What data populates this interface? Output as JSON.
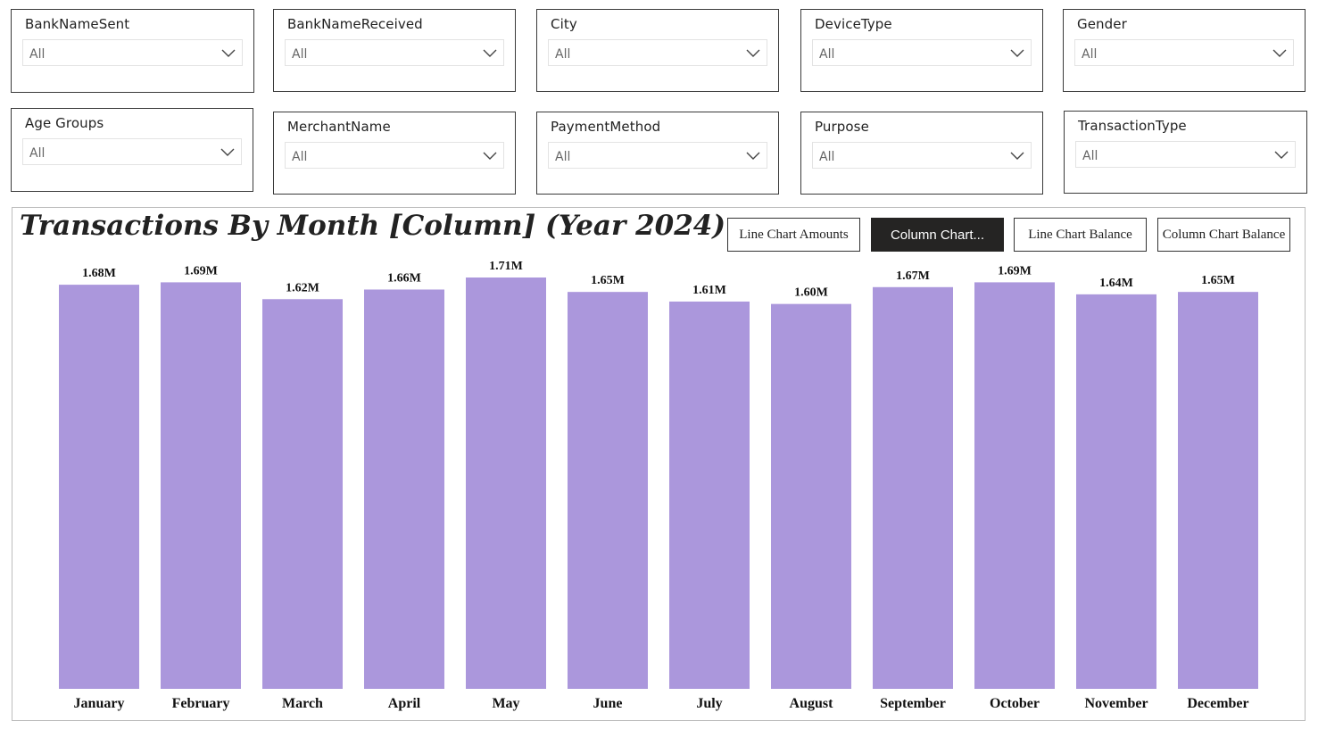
{
  "slicers": [
    {
      "title": "BankNameSent",
      "value": "All"
    },
    {
      "title": "BankNameReceived",
      "value": "All"
    },
    {
      "title": "City",
      "value": "All"
    },
    {
      "title": "DeviceType",
      "value": "All"
    },
    {
      "title": "Gender",
      "value": "All"
    },
    {
      "title": "Age Groups",
      "value": "All"
    },
    {
      "title": "MerchantName",
      "value": "All"
    },
    {
      "title": "PaymentMethod",
      "value": "All"
    },
    {
      "title": "Purpose",
      "value": "All"
    },
    {
      "title": "TransactionType",
      "value": "All"
    }
  ],
  "nav_buttons": [
    {
      "label": "Line Chart Amounts",
      "active": false
    },
    {
      "label": "Column Chart...",
      "active": true
    },
    {
      "label": "Line Chart Balance",
      "active": false
    },
    {
      "label": "Column Chart Balance",
      "active": false
    }
  ],
  "colors": {
    "bar": "#AB97DC",
    "active_button": "#252423"
  },
  "chart_data": {
    "type": "bar",
    "title": "Transactions By Month [Column] (Year 2024)",
    "categories": [
      "January",
      "February",
      "March",
      "April",
      "May",
      "June",
      "July",
      "August",
      "September",
      "October",
      "November",
      "December"
    ],
    "values": [
      1.68,
      1.69,
      1.62,
      1.66,
      1.71,
      1.65,
      1.61,
      1.6,
      1.67,
      1.69,
      1.64,
      1.65
    ],
    "data_labels": [
      "1.68M",
      "1.69M",
      "1.62M",
      "1.66M",
      "1.71M",
      "1.65M",
      "1.61M",
      "1.60M",
      "1.67M",
      "1.69M",
      "1.64M",
      "1.65M"
    ],
    "unit": "M",
    "ylim": [
      0,
      1.71
    ],
    "grid": false,
    "legend": "none"
  }
}
